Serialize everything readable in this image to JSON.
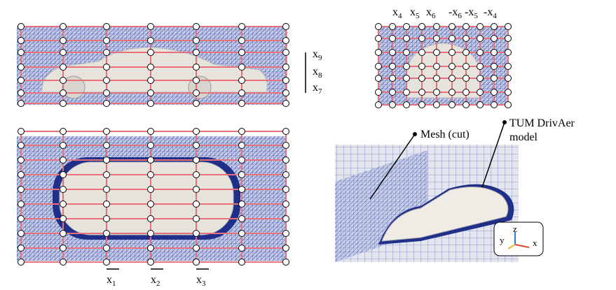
{
  "side_view": {
    "dims": [
      {
        "letter": "x",
        "index": "9"
      },
      {
        "letter": "x",
        "index": "8"
      },
      {
        "letter": "x",
        "index": "7"
      }
    ]
  },
  "front_view": {
    "dims": [
      {
        "letter": "x",
        "index": "4"
      },
      {
        "letter": "x",
        "index": "5"
      },
      {
        "letter": "x",
        "index": "6"
      },
      {
        "sign": "-",
        "letter": "x",
        "index": "6"
      },
      {
        "sign": "-",
        "letter": "x",
        "index": "5"
      },
      {
        "sign": "-",
        "letter": "x",
        "index": "4"
      }
    ]
  },
  "top_view": {
    "dims": [
      {
        "letter": "x",
        "index": "1"
      },
      {
        "letter": "x",
        "index": "2"
      },
      {
        "letter": "x",
        "index": "3"
      }
    ]
  },
  "render": {
    "mesh_label": "Mesh (cut)",
    "model_label": [
      "TUM DrivAer",
      "model"
    ],
    "axes": {
      "z": "z",
      "y": "y",
      "x": "x"
    }
  }
}
